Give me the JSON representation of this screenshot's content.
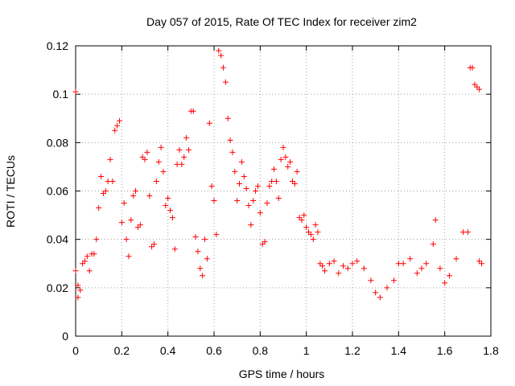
{
  "chart_data": {
    "type": "scatter",
    "title": "Day 057 of 2015, Rate Of TEC Index for receiver zim2",
    "xlabel": "GPS time / hours",
    "ylabel": "ROTI / TECUs",
    "xlim": [
      0,
      1.8
    ],
    "ylim": [
      0,
      0.12
    ],
    "x_ticks": [
      "0",
      "0.2",
      "0.4",
      "0.6",
      "0.8",
      "1",
      "1.2",
      "1.4",
      "1.6",
      "1.8"
    ],
    "y_ticks": [
      "0",
      "0.02",
      "0.04",
      "0.06",
      "0.08",
      "0.1",
      "0.12"
    ],
    "grid": true,
    "marker": "+",
    "marker_color": "#ff0000",
    "series": [
      {
        "name": "ROTI",
        "points": [
          [
            0.0,
            0.101
          ],
          [
            0.0,
            0.027
          ],
          [
            0.01,
            0.021
          ],
          [
            0.01,
            0.016
          ],
          [
            0.02,
            0.019
          ],
          [
            0.03,
            0.03
          ],
          [
            0.04,
            0.031
          ],
          [
            0.05,
            0.033
          ],
          [
            0.06,
            0.027
          ],
          [
            0.07,
            0.034
          ],
          [
            0.08,
            0.034
          ],
          [
            0.09,
            0.04
          ],
          [
            0.1,
            0.053
          ],
          [
            0.11,
            0.066
          ],
          [
            0.12,
            0.059
          ],
          [
            0.13,
            0.06
          ],
          [
            0.14,
            0.064
          ],
          [
            0.15,
            0.073
          ],
          [
            0.16,
            0.064
          ],
          [
            0.17,
            0.085
          ],
          [
            0.18,
            0.087
          ],
          [
            0.19,
            0.089
          ],
          [
            0.2,
            0.047
          ],
          [
            0.21,
            0.055
          ],
          [
            0.22,
            0.04
          ],
          [
            0.23,
            0.033
          ],
          [
            0.24,
            0.048
          ],
          [
            0.25,
            0.058
          ],
          [
            0.26,
            0.06
          ],
          [
            0.27,
            0.045
          ],
          [
            0.28,
            0.046
          ],
          [
            0.29,
            0.074
          ],
          [
            0.3,
            0.073
          ],
          [
            0.31,
            0.076
          ],
          [
            0.32,
            0.058
          ],
          [
            0.33,
            0.037
          ],
          [
            0.34,
            0.038
          ],
          [
            0.35,
            0.064
          ],
          [
            0.36,
            0.072
          ],
          [
            0.37,
            0.078
          ],
          [
            0.38,
            0.068
          ],
          [
            0.39,
            0.054
          ],
          [
            0.4,
            0.057
          ],
          [
            0.41,
            0.052
          ],
          [
            0.42,
            0.049
          ],
          [
            0.43,
            0.036
          ],
          [
            0.44,
            0.071
          ],
          [
            0.45,
            0.077
          ],
          [
            0.46,
            0.071
          ],
          [
            0.47,
            0.074
          ],
          [
            0.48,
            0.082
          ],
          [
            0.49,
            0.077
          ],
          [
            0.5,
            0.093
          ],
          [
            0.51,
            0.093
          ],
          [
            0.52,
            0.041
          ],
          [
            0.53,
            0.035
          ],
          [
            0.54,
            0.028
          ],
          [
            0.55,
            0.025
          ],
          [
            0.56,
            0.04
          ],
          [
            0.57,
            0.032
          ],
          [
            0.58,
            0.088
          ],
          [
            0.59,
            0.062
          ],
          [
            0.6,
            0.056
          ],
          [
            0.61,
            0.042
          ],
          [
            0.62,
            0.118
          ],
          [
            0.63,
            0.116
          ],
          [
            0.64,
            0.111
          ],
          [
            0.65,
            0.105
          ],
          [
            0.66,
            0.09
          ],
          [
            0.67,
            0.081
          ],
          [
            0.68,
            0.076
          ],
          [
            0.69,
            0.068
          ],
          [
            0.7,
            0.056
          ],
          [
            0.71,
            0.063
          ],
          [
            0.72,
            0.072
          ],
          [
            0.73,
            0.066
          ],
          [
            0.74,
            0.061
          ],
          [
            0.75,
            0.054
          ],
          [
            0.76,
            0.046
          ],
          [
            0.77,
            0.056
          ],
          [
            0.78,
            0.06
          ],
          [
            0.79,
            0.062
          ],
          [
            0.8,
            0.051
          ],
          [
            0.81,
            0.038
          ],
          [
            0.82,
            0.039
          ],
          [
            0.83,
            0.055
          ],
          [
            0.84,
            0.062
          ],
          [
            0.85,
            0.064
          ],
          [
            0.86,
            0.069
          ],
          [
            0.87,
            0.064
          ],
          [
            0.88,
            0.057
          ],
          [
            0.89,
            0.073
          ],
          [
            0.9,
            0.078
          ],
          [
            0.91,
            0.074
          ],
          [
            0.92,
            0.07
          ],
          [
            0.93,
            0.072
          ],
          [
            0.94,
            0.064
          ],
          [
            0.95,
            0.063
          ],
          [
            0.96,
            0.068
          ],
          [
            0.97,
            0.049
          ],
          [
            0.98,
            0.048
          ],
          [
            0.99,
            0.05
          ],
          [
            1.0,
            0.045
          ],
          [
            1.01,
            0.043
          ],
          [
            1.02,
            0.042
          ],
          [
            1.03,
            0.04
          ],
          [
            1.04,
            0.046
          ],
          [
            1.05,
            0.043
          ],
          [
            1.06,
            0.03
          ],
          [
            1.07,
            0.029
          ],
          [
            1.08,
            0.027
          ],
          [
            1.1,
            0.03
          ],
          [
            1.12,
            0.031
          ],
          [
            1.14,
            0.026
          ],
          [
            1.16,
            0.029
          ],
          [
            1.18,
            0.028
          ],
          [
            1.2,
            0.03
          ],
          [
            1.22,
            0.031
          ],
          [
            1.25,
            0.028
          ],
          [
            1.28,
            0.023
          ],
          [
            1.3,
            0.018
          ],
          [
            1.32,
            0.016
          ],
          [
            1.35,
            0.02
          ],
          [
            1.38,
            0.023
          ],
          [
            1.4,
            0.03
          ],
          [
            1.42,
            0.03
          ],
          [
            1.45,
            0.032
          ],
          [
            1.48,
            0.026
          ],
          [
            1.5,
            0.028
          ],
          [
            1.52,
            0.03
          ],
          [
            1.55,
            0.038
          ],
          [
            1.56,
            0.048
          ],
          [
            1.58,
            0.028
          ],
          [
            1.6,
            0.022
          ],
          [
            1.62,
            0.025
          ],
          [
            1.65,
            0.032
          ],
          [
            1.68,
            0.043
          ],
          [
            1.7,
            0.043
          ],
          [
            1.71,
            0.111
          ],
          [
            1.72,
            0.111
          ],
          [
            1.73,
            0.104
          ],
          [
            1.74,
            0.103
          ],
          [
            1.75,
            0.102
          ],
          [
            1.75,
            0.031
          ],
          [
            1.76,
            0.03
          ]
        ]
      }
    ]
  }
}
